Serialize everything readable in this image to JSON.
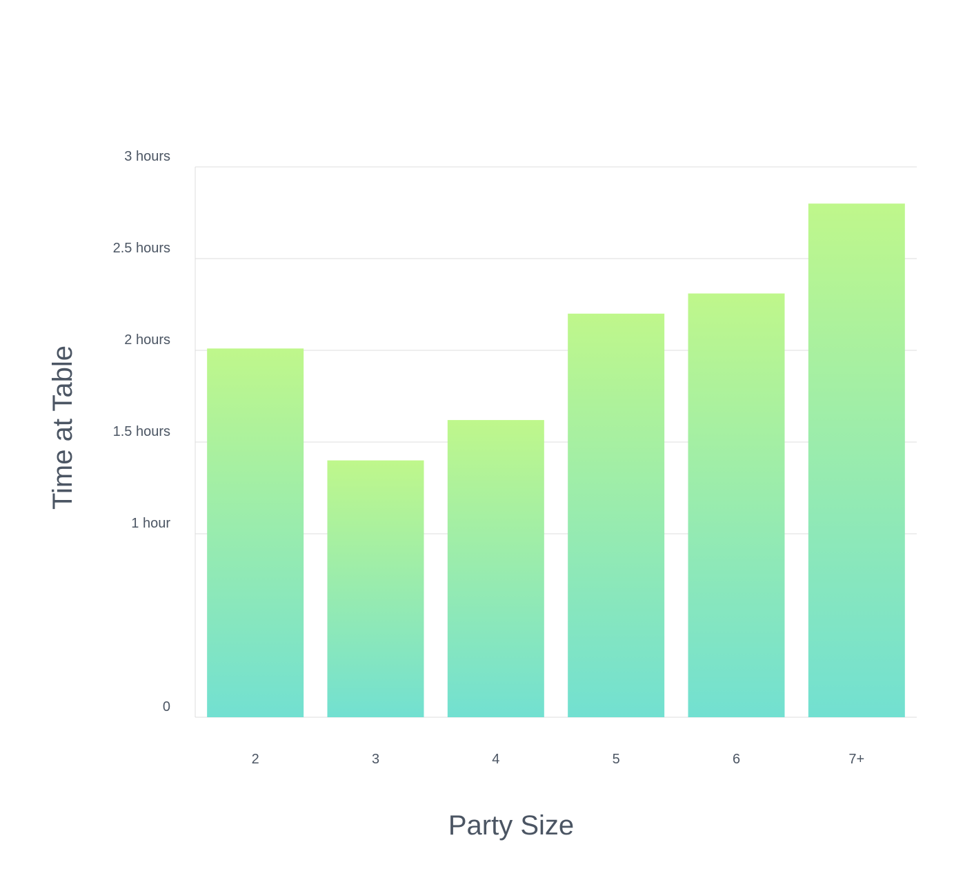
{
  "chart_data": {
    "type": "bar",
    "xlabel": "Party Size",
    "ylabel": "Time at Table",
    "categories": [
      "2",
      "3",
      "4",
      "5",
      "6",
      "7+"
    ],
    "values": [
      2.01,
      1.4,
      1.62,
      2.2,
      2.31,
      2.8
    ],
    "ylim": [
      0,
      3
    ],
    "y_ticks": [
      {
        "value": 0,
        "label": "0"
      },
      {
        "value": 1,
        "label": "1 hour"
      },
      {
        "value": 1.5,
        "label": "1.5 hours"
      },
      {
        "value": 2,
        "label": "2 hours"
      },
      {
        "value": 2.5,
        "label": "2.5 hours"
      },
      {
        "value": 3,
        "label": "3 hours"
      }
    ],
    "grid": true,
    "bar_gradient": {
      "top": "#bff78b",
      "bottom": "#72e0d1"
    }
  }
}
